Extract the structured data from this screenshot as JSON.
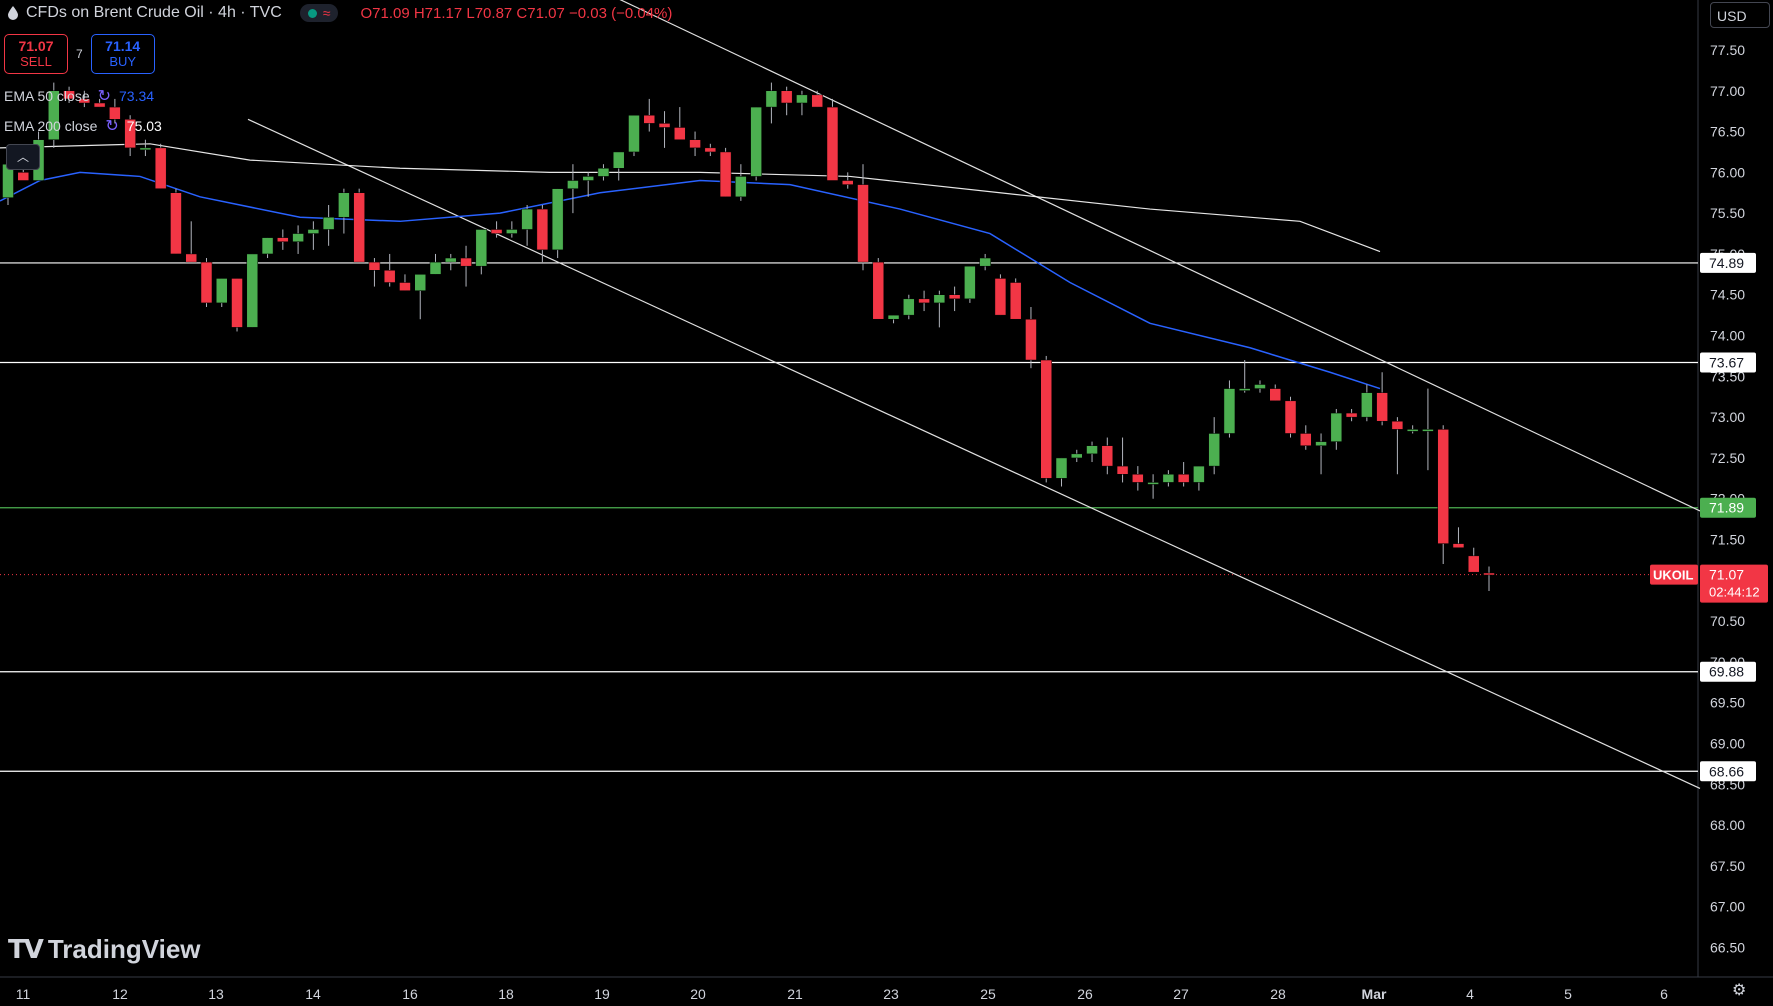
{
  "header": {
    "title": "CFDs on Brent Crude Oil · 4h · TVC",
    "ohlc": "O71.09 H71.17 L70.87 C71.07 −0.03 (−0.04%)"
  },
  "trade": {
    "sell_price": "71.07",
    "sell_label": "SELL",
    "spread": "7",
    "buy_price": "71.14",
    "buy_label": "BUY"
  },
  "indicators": [
    {
      "name": "EMA 50 close",
      "value": "73.34",
      "color": "#2962ff"
    },
    {
      "name": "EMA 200 close",
      "value": "75.03",
      "color": "#ffffff"
    }
  ],
  "currency": "USD",
  "brand": "TradingView",
  "colors": {
    "up": "#4caf50",
    "down": "#f23645",
    "ema50": "#2962ff",
    "ema200": "#ffffff"
  },
  "chart_data": {
    "type": "candlestick",
    "symbol": "UKOIL",
    "last_price": "71.07",
    "countdown": "02:44:12",
    "ylim": [
      66.2,
      78.1
    ],
    "y_ticks": [
      "77.50",
      "77.00",
      "76.50",
      "76.00",
      "75.50",
      "75.00",
      "74.50",
      "74.00",
      "73.50",
      "73.00",
      "72.50",
      "72.00",
      "71.50",
      "71.00",
      "70.50",
      "70.00",
      "69.50",
      "69.00",
      "68.50",
      "68.00",
      "67.50",
      "67.00",
      "66.50"
    ],
    "x_ticks": [
      "11",
      "12",
      "13",
      "14",
      "16",
      "18",
      "19",
      "20",
      "21",
      "23",
      "25",
      "26",
      "27",
      "28",
      "Mar",
      "4",
      "5",
      "6"
    ],
    "candles": [
      [
        75.69,
        76.1,
        75.6,
        76.1
      ],
      [
        76.0,
        76.1,
        75.9,
        75.9
      ],
      [
        75.9,
        76.5,
        75.9,
        76.4
      ],
      [
        76.4,
        77.1,
        76.3,
        77.0
      ],
      [
        77.0,
        77.05,
        76.85,
        76.9
      ],
      [
        76.9,
        77.0,
        76.8,
        76.85
      ],
      [
        76.85,
        76.9,
        76.8,
        76.8
      ],
      [
        76.8,
        76.9,
        76.6,
        76.65
      ],
      [
        76.65,
        76.7,
        76.2,
        76.3
      ],
      [
        76.3,
        76.4,
        76.2,
        76.3
      ],
      [
        76.3,
        76.35,
        75.8,
        75.8
      ],
      [
        75.75,
        75.8,
        75.0,
        75.0
      ],
      [
        75.0,
        75.4,
        74.9,
        74.9
      ],
      [
        74.9,
        74.95,
        74.35,
        74.4
      ],
      [
        74.4,
        74.7,
        74.35,
        74.7
      ],
      [
        74.7,
        74.7,
        74.05,
        74.1
      ],
      [
        74.1,
        75.0,
        74.1,
        75.0
      ],
      [
        75.0,
        75.2,
        74.95,
        75.2
      ],
      [
        75.2,
        75.3,
        75.05,
        75.15
      ],
      [
        75.15,
        75.35,
        75.0,
        75.25
      ],
      [
        75.25,
        75.4,
        75.05,
        75.3
      ],
      [
        75.3,
        75.6,
        75.1,
        75.45
      ],
      [
        75.45,
        75.8,
        75.25,
        75.75
      ],
      [
        75.75,
        75.8,
        74.9,
        74.9
      ],
      [
        74.9,
        74.95,
        74.6,
        74.8
      ],
      [
        74.8,
        75.0,
        74.6,
        74.65
      ],
      [
        74.65,
        74.75,
        74.55,
        74.55
      ],
      [
        74.55,
        74.7,
        74.2,
        74.75
      ],
      [
        74.75,
        75.0,
        74.75,
        74.9
      ],
      [
        74.9,
        75.0,
        74.8,
        74.95
      ],
      [
        74.95,
        75.1,
        74.6,
        74.85
      ],
      [
        74.85,
        75.3,
        74.75,
        75.3
      ],
      [
        75.3,
        75.4,
        75.2,
        75.25
      ],
      [
        75.25,
        75.4,
        75.2,
        75.3
      ],
      [
        75.3,
        75.6,
        75.1,
        75.55
      ],
      [
        75.55,
        75.6,
        74.9,
        75.05
      ],
      [
        75.05,
        75.8,
        74.95,
        75.8
      ],
      [
        75.8,
        76.1,
        75.5,
        75.9
      ],
      [
        75.9,
        76.0,
        75.7,
        75.95
      ],
      [
        75.95,
        76.1,
        75.9,
        76.05
      ],
      [
        76.05,
        76.2,
        75.9,
        76.25
      ],
      [
        76.25,
        76.7,
        76.2,
        76.7
      ],
      [
        76.7,
        76.9,
        76.5,
        76.6
      ],
      [
        76.6,
        76.75,
        76.3,
        76.55
      ],
      [
        76.55,
        76.8,
        76.4,
        76.4
      ],
      [
        76.4,
        76.5,
        76.2,
        76.3
      ],
      [
        76.3,
        76.35,
        76.2,
        76.25
      ],
      [
        76.25,
        76.3,
        75.7,
        75.7
      ],
      [
        75.7,
        76.1,
        75.65,
        75.95
      ],
      [
        75.95,
        76.8,
        75.9,
        76.8
      ],
      [
        76.8,
        77.1,
        76.6,
        77.0
      ],
      [
        77.0,
        77.05,
        76.7,
        76.85
      ],
      [
        76.85,
        77.0,
        76.7,
        76.95
      ],
      [
        76.95,
        77.0,
        76.8,
        76.8
      ],
      [
        76.8,
        76.9,
        75.9,
        75.9
      ],
      [
        75.9,
        76.0,
        75.8,
        75.85
      ],
      [
        75.85,
        76.1,
        74.8,
        74.9
      ],
      [
        74.9,
        74.95,
        74.2,
        74.2
      ],
      [
        74.2,
        74.25,
        74.15,
        74.25
      ],
      [
        74.25,
        74.5,
        74.2,
        74.45
      ],
      [
        74.45,
        74.55,
        74.3,
        74.4
      ],
      [
        74.4,
        74.55,
        74.1,
        74.5
      ],
      [
        74.5,
        74.6,
        74.3,
        74.45
      ],
      [
        74.45,
        74.85,
        74.4,
        74.85
      ],
      [
        74.85,
        75.0,
        74.8,
        74.95
      ],
      [
        74.7,
        74.75,
        74.25,
        74.25
      ],
      [
        74.65,
        74.7,
        74.2,
        74.2
      ],
      [
        74.2,
        74.35,
        73.6,
        73.7
      ],
      [
        73.7,
        73.75,
        72.2,
        72.25
      ],
      [
        72.25,
        72.5,
        72.15,
        72.5
      ],
      [
        72.5,
        72.6,
        72.45,
        72.55
      ],
      [
        72.55,
        72.7,
        72.45,
        72.65
      ],
      [
        72.65,
        72.75,
        72.3,
        72.4
      ],
      [
        72.4,
        72.75,
        72.2,
        72.3
      ],
      [
        72.3,
        72.4,
        72.1,
        72.2
      ],
      [
        72.2,
        72.3,
        72.0,
        72.2
      ],
      [
        72.2,
        72.35,
        72.15,
        72.3
      ],
      [
        72.3,
        72.45,
        72.15,
        72.2
      ],
      [
        72.2,
        72.4,
        72.1,
        72.4
      ],
      [
        72.4,
        73.0,
        72.3,
        72.8
      ],
      [
        72.8,
        73.45,
        72.75,
        73.35
      ],
      [
        73.35,
        73.7,
        73.3,
        73.35
      ],
      [
        73.35,
        73.45,
        73.3,
        73.4
      ],
      [
        73.35,
        73.4,
        73.2,
        73.2
      ],
      [
        73.2,
        73.25,
        72.75,
        72.8
      ],
      [
        72.8,
        72.9,
        72.6,
        72.65
      ],
      [
        72.65,
        72.8,
        72.3,
        72.7
      ],
      [
        72.7,
        73.1,
        72.6,
        73.05
      ],
      [
        73.05,
        73.1,
        72.95,
        73.0
      ],
      [
        73.0,
        73.4,
        72.95,
        73.3
      ],
      [
        73.3,
        73.55,
        72.9,
        72.95
      ],
      [
        72.95,
        73.0,
        72.3,
        72.85
      ],
      [
        72.85,
        72.9,
        72.8,
        72.85
      ],
      [
        72.85,
        73.35,
        72.35,
        72.85
      ],
      [
        72.85,
        72.9,
        71.2,
        71.45
      ],
      [
        71.45,
        71.65,
        71.4,
        71.4
      ],
      [
        71.3,
        71.4,
        71.1,
        71.1
      ],
      [
        71.09,
        71.17,
        70.87,
        71.07
      ]
    ],
    "ema50": [
      [
        0,
        75.65
      ],
      [
        40,
        75.9
      ],
      [
        80,
        76.0
      ],
      [
        140,
        75.95
      ],
      [
        200,
        75.7
      ],
      [
        300,
        75.45
      ],
      [
        400,
        75.4
      ],
      [
        500,
        75.5
      ],
      [
        600,
        75.75
      ],
      [
        700,
        75.9
      ],
      [
        790,
        75.85
      ],
      [
        900,
        75.55
      ],
      [
        990,
        75.25
      ],
      [
        1070,
        74.65
      ],
      [
        1150,
        74.15
      ],
      [
        1250,
        73.85
      ],
      [
        1330,
        73.55
      ],
      [
        1380,
        73.35
      ]
    ],
    "ema200": [
      [
        0,
        76.3
      ],
      [
        150,
        76.35
      ],
      [
        250,
        76.15
      ],
      [
        400,
        76.05
      ],
      [
        550,
        76.0
      ],
      [
        700,
        76.0
      ],
      [
        850,
        75.95
      ],
      [
        1000,
        75.75
      ],
      [
        1150,
        75.55
      ],
      [
        1300,
        75.4
      ],
      [
        1380,
        75.03
      ]
    ],
    "levels": [
      {
        "label": "74.89",
        "value": 74.89,
        "color": "#ffffff"
      },
      {
        "label": "73.67",
        "value": 73.67,
        "color": "#ffffff"
      },
      {
        "label": "71.89",
        "value": 71.89,
        "color": "#4caf50"
      },
      {
        "label": "69.88",
        "value": 69.88,
        "color": "#ffffff"
      },
      {
        "label": "68.66",
        "value": 68.66,
        "color": "#ffffff"
      }
    ],
    "trendlines": [
      {
        "x1": 580,
        "y1": 78.35,
        "x2": 1700,
        "y2": 71.85
      },
      {
        "x1": 248,
        "y1": 76.65,
        "x2": 1700,
        "y2": 68.45
      }
    ]
  }
}
